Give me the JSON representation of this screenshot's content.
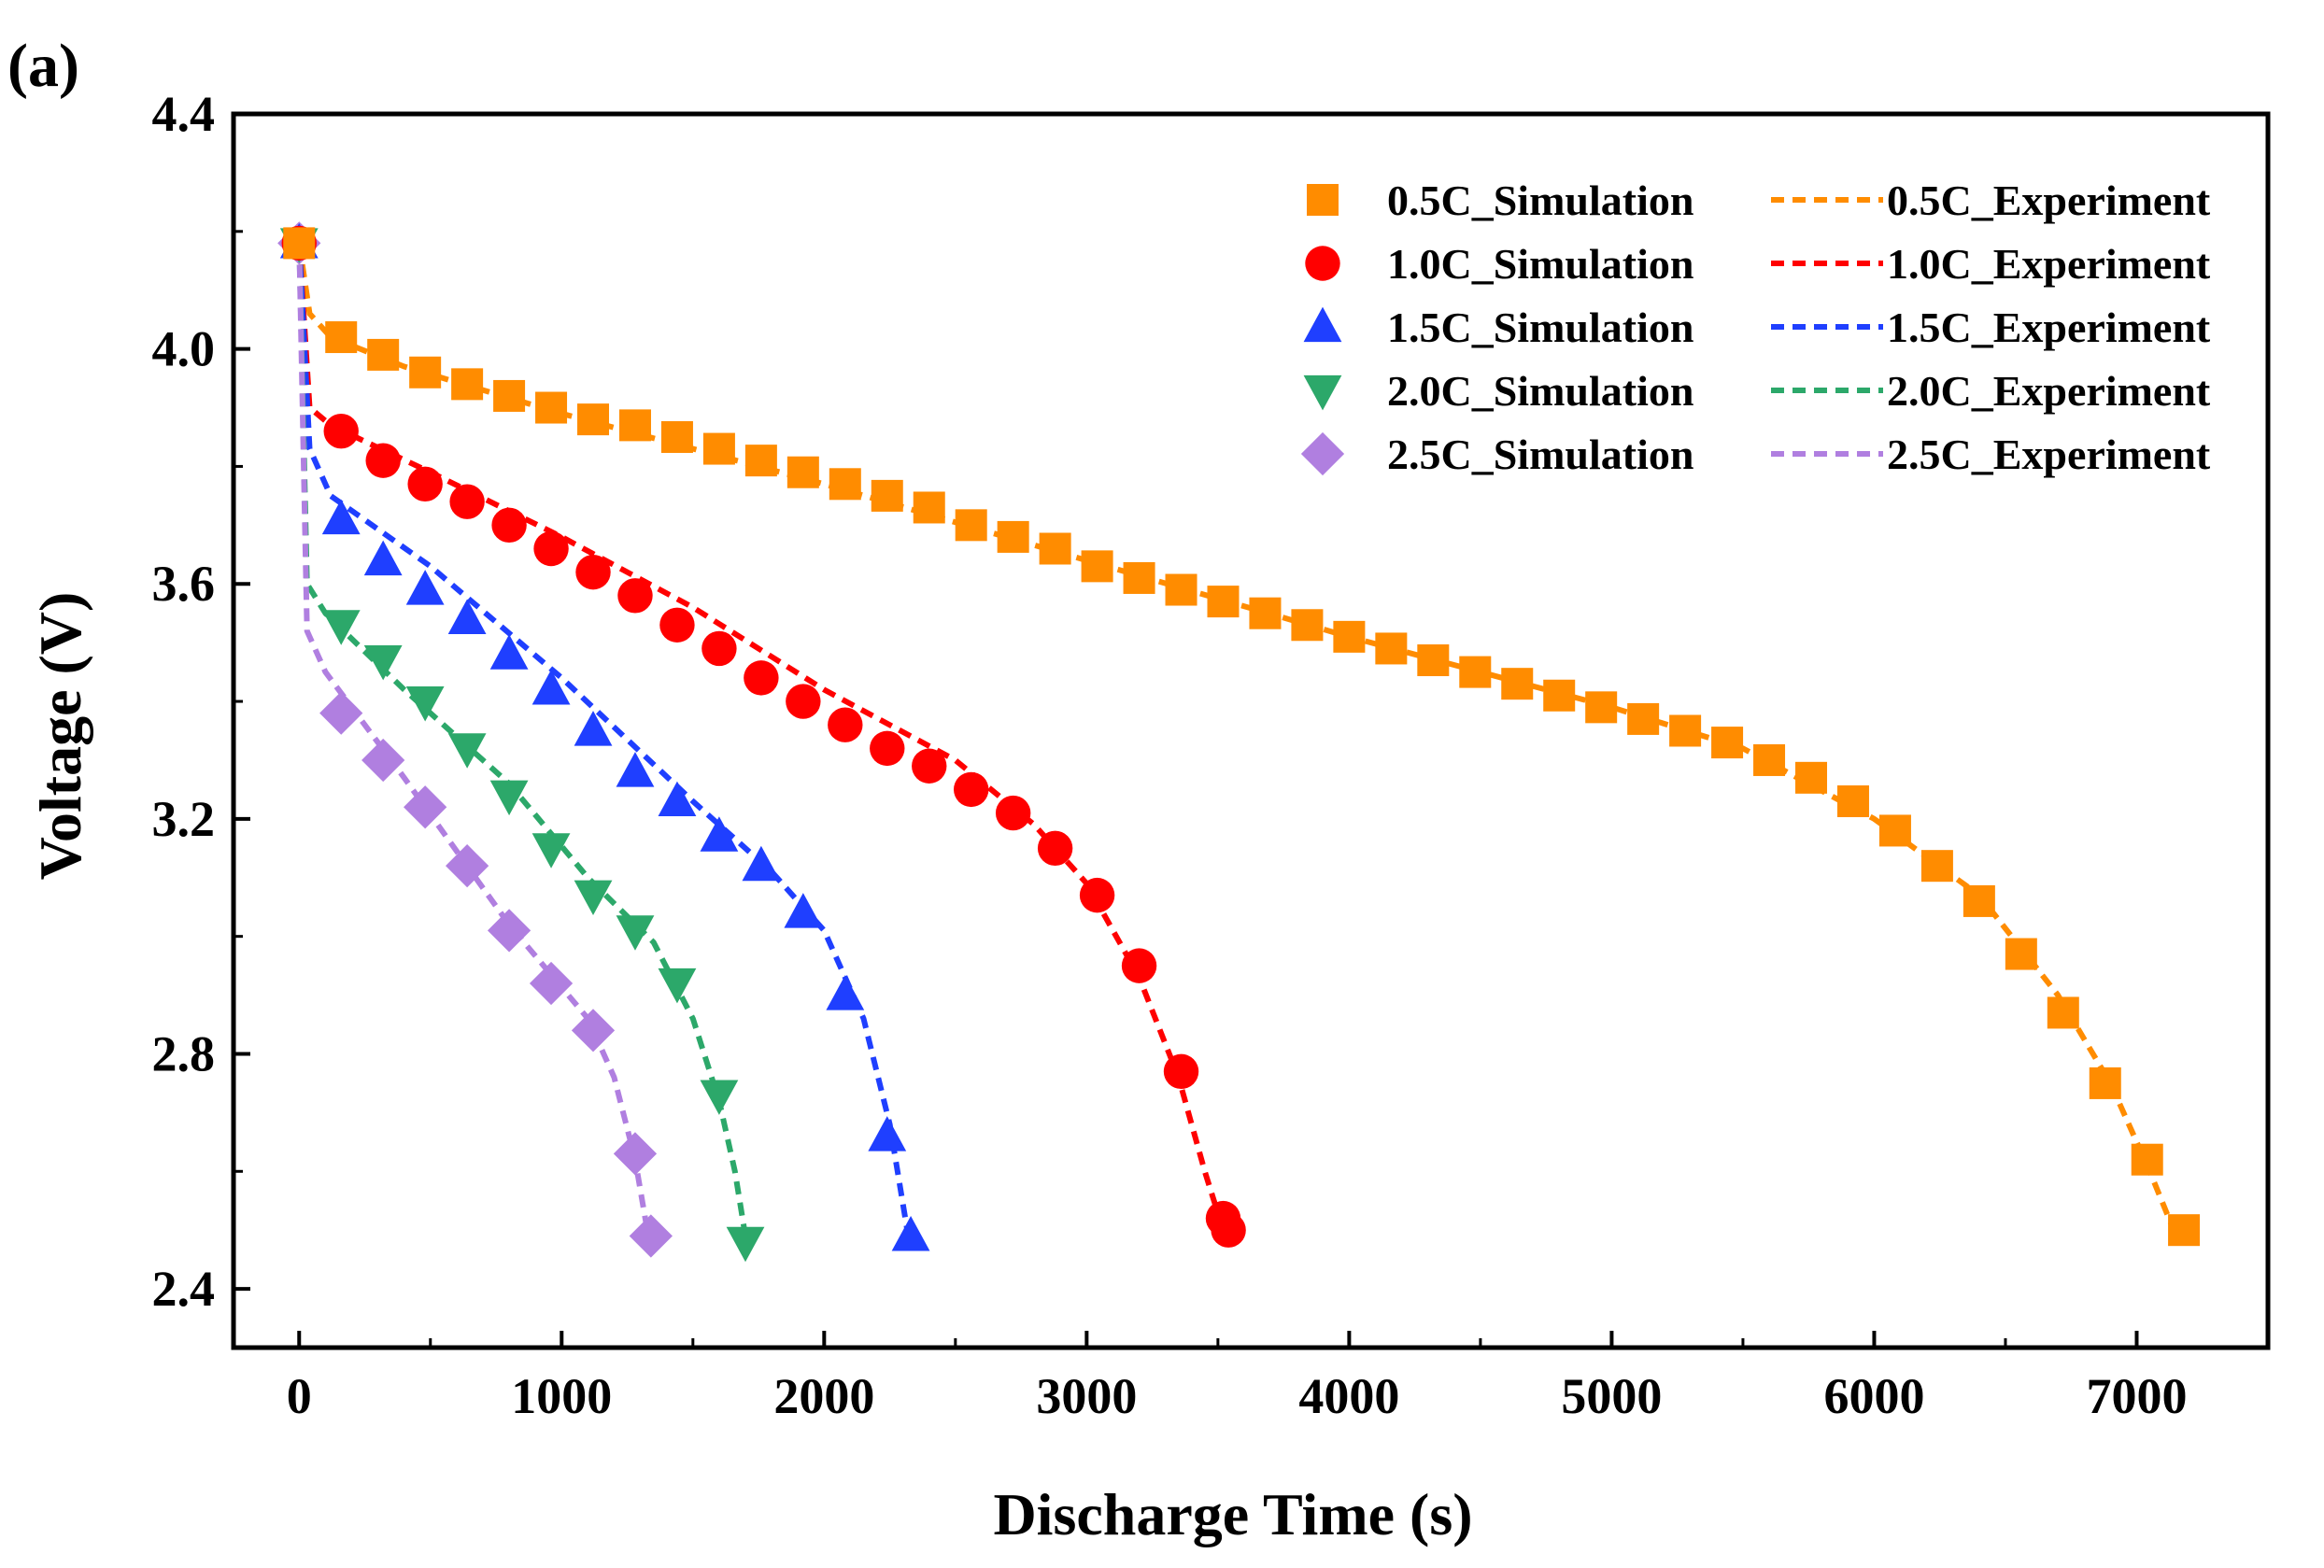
{
  "chart_data": {
    "type": "line",
    "panel_label": "(a)",
    "xlabel": "Discharge Time (s)",
    "ylabel": "Voltage (V)",
    "xlim": [
      -250,
      7500
    ],
    "ylim": [
      2.3,
      4.4
    ],
    "xticks": [
      0,
      1000,
      2000,
      3000,
      4000,
      5000,
      6000,
      7000
    ],
    "yticks": [
      2.4,
      2.8,
      3.2,
      3.6,
      4.0,
      4.4
    ],
    "xtick_labels": [
      "0",
      "1000",
      "2000",
      "3000",
      "4000",
      "5000",
      "6000",
      "7000"
    ],
    "ytick_labels": [
      "2.4",
      "2.8",
      "3.2",
      "3.6",
      "4.0",
      "4.4"
    ],
    "legend_position": "top-right",
    "series": [
      {
        "rate": "0.5C",
        "sim_name": "0.5C_Simulation",
        "exp_name": "0.5C_Experiment",
        "color": "#FF8C00",
        "marker": "square",
        "simulation": {
          "x": [
            0,
            160,
            320,
            480,
            640,
            800,
            960,
            1120,
            1280,
            1440,
            1600,
            1760,
            1920,
            2080,
            2240,
            2400,
            2560,
            2720,
            2880,
            3040,
            3200,
            3360,
            3520,
            3680,
            3840,
            4000,
            4160,
            4320,
            4480,
            4640,
            4800,
            4960,
            5120,
            5280,
            5440,
            5600,
            5760,
            5920,
            6080,
            6240,
            6400,
            6560,
            6720,
            6880,
            7040,
            7180
          ],
          "y": [
            4.18,
            4.02,
            3.99,
            3.96,
            3.94,
            3.92,
            3.9,
            3.88,
            3.87,
            3.85,
            3.83,
            3.81,
            3.79,
            3.77,
            3.75,
            3.73,
            3.7,
            3.68,
            3.66,
            3.63,
            3.61,
            3.59,
            3.57,
            3.55,
            3.53,
            3.51,
            3.49,
            3.47,
            3.45,
            3.43,
            3.41,
            3.39,
            3.37,
            3.35,
            3.33,
            3.3,
            3.27,
            3.23,
            3.18,
            3.12,
            3.06,
            2.97,
            2.87,
            2.75,
            2.62,
            2.5
          ]
        },
        "experiment": {
          "x": [
            0,
            40,
            120,
            400,
            1000,
            2000,
            3000,
            4000,
            5000,
            5500,
            6000,
            6400,
            6700,
            6900,
            7050,
            7150
          ],
          "y": [
            4.18,
            4.06,
            4.02,
            3.97,
            3.89,
            3.77,
            3.64,
            3.51,
            3.39,
            3.32,
            3.2,
            3.07,
            2.9,
            2.75,
            2.6,
            2.49
          ]
        }
      },
      {
        "rate": "1.0C",
        "sim_name": "1.0C_Simulation",
        "exp_name": "1.0C_Experiment",
        "color": "#FF0000",
        "marker": "circle",
        "simulation": {
          "x": [
            0,
            160,
            320,
            480,
            640,
            800,
            960,
            1120,
            1280,
            1440,
            1600,
            1760,
            1920,
            2080,
            2240,
            2400,
            2560,
            2720,
            2880,
            3040,
            3200,
            3360,
            3520,
            3540
          ],
          "y": [
            4.18,
            3.86,
            3.81,
            3.77,
            3.74,
            3.7,
            3.66,
            3.62,
            3.58,
            3.53,
            3.49,
            3.44,
            3.4,
            3.36,
            3.32,
            3.29,
            3.25,
            3.21,
            3.15,
            3.07,
            2.95,
            2.77,
            2.52,
            2.5
          ]
        },
        "experiment": {
          "x": [
            0,
            40,
            120,
            500,
            1000,
            1500,
            2000,
            2500,
            2800,
            3000,
            3200,
            3350,
            3450,
            3520
          ],
          "y": [
            4.18,
            3.9,
            3.87,
            3.79,
            3.68,
            3.56,
            3.42,
            3.3,
            3.19,
            3.09,
            2.93,
            2.76,
            2.6,
            2.5
          ]
        }
      },
      {
        "rate": "1.5C",
        "sim_name": "1.5C_Simulation",
        "exp_name": "1.5C_Experiment",
        "color": "#1F3FFF",
        "marker": "triangle-up",
        "simulation": {
          "x": [
            0,
            160,
            320,
            480,
            640,
            800,
            960,
            1120,
            1280,
            1440,
            1600,
            1760,
            1920,
            2080,
            2240,
            2330
          ],
          "y": [
            4.18,
            3.71,
            3.64,
            3.59,
            3.54,
            3.48,
            3.42,
            3.35,
            3.28,
            3.23,
            3.17,
            3.12,
            3.04,
            2.9,
            2.66,
            2.49
          ]
        },
        "experiment": {
          "x": [
            0,
            40,
            120,
            500,
            1000,
            1500,
            1800,
            2000,
            2150,
            2250,
            2320
          ],
          "y": [
            4.18,
            3.83,
            3.75,
            3.63,
            3.44,
            3.23,
            3.11,
            3.01,
            2.86,
            2.68,
            2.49
          ]
        }
      },
      {
        "rate": "2.0C",
        "sim_name": "2.0C_Simulation",
        "exp_name": "2.0C_Experiment",
        "color": "#2CA86A",
        "marker": "triangle-down",
        "simulation": {
          "x": [
            0,
            160,
            320,
            480,
            640,
            800,
            960,
            1120,
            1280,
            1440,
            1600,
            1700
          ],
          "y": [
            4.18,
            3.53,
            3.47,
            3.4,
            3.32,
            3.24,
            3.15,
            3.07,
            3.01,
            2.92,
            2.73,
            2.48
          ]
        },
        "experiment": {
          "x": [
            0,
            30,
            100,
            400,
            800,
            1100,
            1350,
            1500,
            1600,
            1660,
            1700
          ],
          "y": [
            4.18,
            3.6,
            3.55,
            3.42,
            3.26,
            3.1,
            2.99,
            2.86,
            2.72,
            2.6,
            2.49
          ]
        }
      },
      {
        "rate": "2.5C",
        "sim_name": "2.5C_Simulation",
        "exp_name": "2.5C_Experiment",
        "color": "#B07FE0",
        "marker": "diamond",
        "simulation": {
          "x": [
            0,
            160,
            320,
            480,
            640,
            800,
            960,
            1120,
            1280,
            1340
          ],
          "y": [
            4.18,
            3.38,
            3.3,
            3.22,
            3.12,
            3.01,
            2.92,
            2.84,
            2.63,
            2.49
          ]
        },
        "experiment": {
          "x": [
            0,
            30,
            100,
            400,
            800,
            1100,
            1200,
            1280,
            1330
          ],
          "y": [
            4.18,
            3.52,
            3.45,
            3.27,
            3.02,
            2.86,
            2.76,
            2.62,
            2.49
          ]
        }
      }
    ]
  }
}
